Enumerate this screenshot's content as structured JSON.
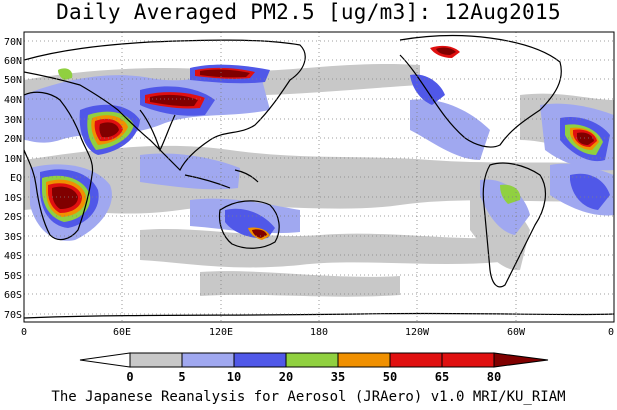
{
  "title": "Daily Averaged PM2.5 [ug/m3]: 12Aug2015",
  "footer": "The Japanese Reanalysis for Aerosol (JRAero) v1.0 MRI/KU_RIAM",
  "lat_labels": [
    "70N",
    "60N",
    "50N",
    "40N",
    "30N",
    "20N",
    "10N",
    "EQ",
    "10S",
    "20S",
    "30S",
    "40S",
    "50S",
    "60S",
    "70S"
  ],
  "lon_labels": [
    "0",
    "60E",
    "120E",
    "180",
    "120W",
    "60W",
    "0"
  ],
  "colorbar": {
    "labels": [
      "0",
      "5",
      "10",
      "20",
      "35",
      "50",
      "65",
      "80"
    ],
    "colors": [
      "#ffffff",
      "#c8c8c8",
      "#a0a8f0",
      "#5058e8",
      "#90d040",
      "#f09000",
      "#e01010",
      "#800000"
    ]
  }
}
